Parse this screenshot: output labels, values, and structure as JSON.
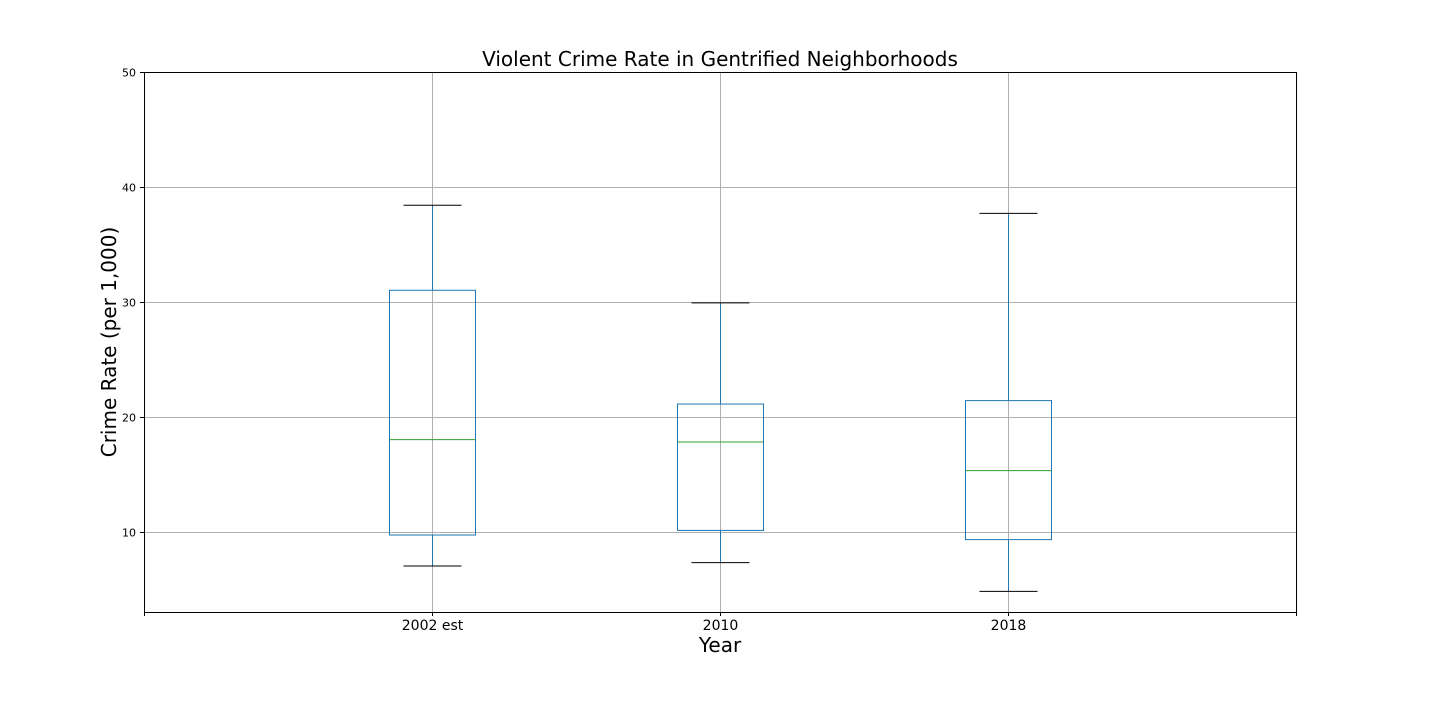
{
  "chart_data": {
    "type": "box",
    "title": "Violent Crime Rate in Gentrified Neighborhoods",
    "xlabel": "Year",
    "ylabel": "Crime Rate (per 1,000)",
    "ylim": [
      3,
      50
    ],
    "yticks": [
      "10",
      "20",
      "30",
      "40",
      "50"
    ],
    "grid": true,
    "categories": [
      "2002 est",
      "2010",
      "2018"
    ],
    "boxes": [
      {
        "category": "2002 est",
        "whisker_low": 7.0,
        "q1": 9.7,
        "median": 18.0,
        "q3": 31.0,
        "whisker_high": 38.4
      },
      {
        "category": "2010",
        "whisker_low": 7.3,
        "q1": 10.1,
        "median": 17.8,
        "q3": 21.1,
        "whisker_high": 29.9
      },
      {
        "category": "2018",
        "whisker_low": 4.8,
        "q1": 9.3,
        "median": 15.3,
        "q3": 21.4,
        "whisker_high": 37.7
      }
    ],
    "colors": {
      "box": "#1f77b4",
      "median": "#2ca02c",
      "cap": "#000000",
      "grid": "#b0b0b0"
    }
  }
}
